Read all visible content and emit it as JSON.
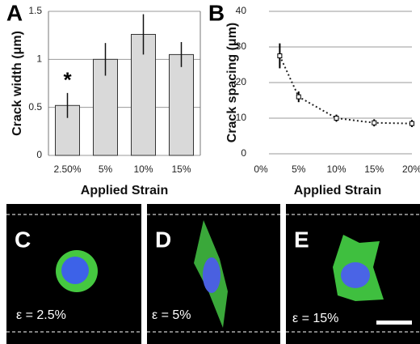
{
  "chart_data": [
    {
      "type": "bar",
      "letter": "A",
      "ylabel": "Crack width (μm)",
      "xlabel": "Applied Strain",
      "categories": [
        "2.50%",
        "5%",
        "10%",
        "15%"
      ],
      "values": [
        0.52,
        1.0,
        1.26,
        1.05
      ],
      "errors": [
        0.13,
        0.17,
        0.21,
        0.13
      ],
      "color": "#d9d9d9",
      "annotation": "*",
      "ylim": [
        0,
        1.5
      ],
      "yticks": [
        0,
        0.5,
        1,
        1.5
      ],
      "grid": true
    },
    {
      "type": "scatter",
      "letter": "B",
      "ylabel": "Crack spacing (μm)",
      "xlabel": "Applied Strain",
      "x": [
        2.5,
        5,
        10,
        15,
        20
      ],
      "values": [
        27.5,
        16,
        10,
        8.7,
        8.5
      ],
      "errors": [
        3.5,
        1.5,
        1,
        1,
        1
      ],
      "color": "#000000",
      "trendline": true,
      "xlim": [
        0,
        20
      ],
      "xticks": [
        {
          "value": 0,
          "label": "0%"
        },
        {
          "value": 5,
          "label": "5%"
        },
        {
          "value": 10,
          "label": "10%"
        },
        {
          "value": 15,
          "label": "15%"
        },
        {
          "value": 20,
          "label": "20%"
        }
      ],
      "ylim": [
        0,
        40
      ],
      "yticks": [
        0,
        10,
        20,
        30,
        40
      ],
      "grid": true
    }
  ],
  "panels": [
    {
      "label": "C",
      "strain": "ε = 2.5%"
    },
    {
      "label": "D",
      "strain": "ε = 5%"
    },
    {
      "label": "E",
      "strain": "ε = 15%"
    }
  ]
}
